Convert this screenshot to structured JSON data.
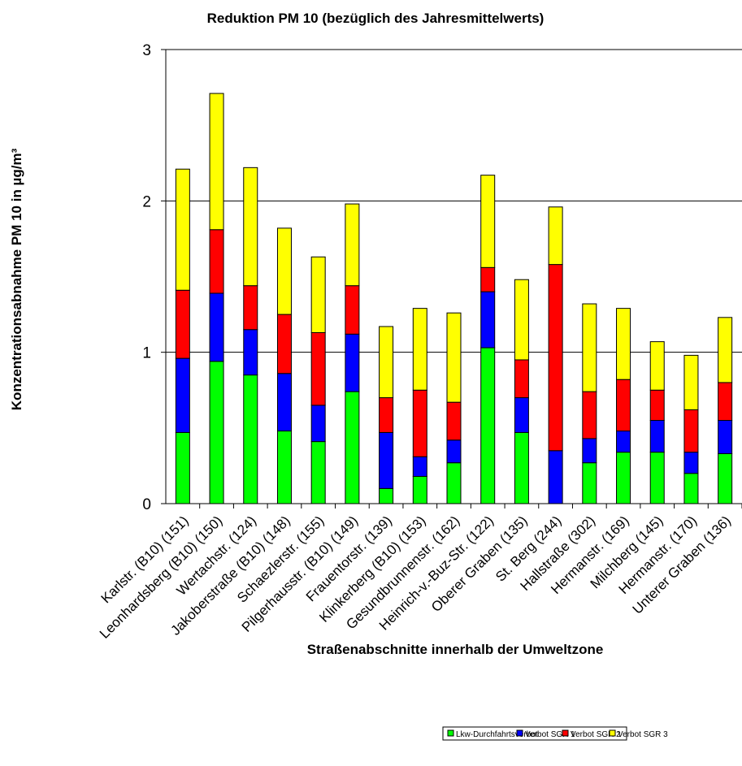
{
  "chart_data": {
    "type": "bar",
    "stacked": true,
    "title": "Reduktion PM 10 (bezüglich des Jahresmittelwerts)",
    "xlabel": "Straßenabschnitte innerhalb der Umweltzone",
    "ylabel": "Konzentrationsabnahme PM 10 in µg/m³",
    "ylim": [
      0,
      3
    ],
    "yticks": [
      "0",
      "1",
      "2",
      "3"
    ],
    "grid": true,
    "legend_position": "bottom-right",
    "categories": [
      "Karlstr. (B10) (151)",
      "Leonhardsberg (B10) (150)",
      "Wertachstr. (124)",
      "Jakoberstraße (B10) (148)",
      "Schaezlerstr. (155)",
      "Pilgerhausstr. (B10) (149)",
      "Frauentorstr. (139)",
      "Klinkerberg (B10) (153)",
      "Gesundbrunnenstr. (162)",
      "Heinrich-v.-Buz-Str. (122)",
      "Oberer Graben (135)",
      "St. Berg (244)",
      "Hallstraße (302)",
      "Hermanstr. (169)",
      "Milchberg (145)",
      "Hermanstr. (170)",
      "Unterer Graben (136)"
    ],
    "series": [
      {
        "name": "Lkw-Durchfahrtsverbot",
        "color": "#00ff00",
        "values": [
          0.47,
          0.94,
          0.85,
          0.48,
          0.41,
          0.74,
          0.1,
          0.18,
          0.27,
          1.03,
          0.47,
          0.0,
          0.27,
          0.34,
          0.34,
          0.2,
          0.33
        ]
      },
      {
        "name": "Verbot SGR 1",
        "color": "#0000ff",
        "values": [
          0.49,
          0.45,
          0.3,
          0.38,
          0.24,
          0.38,
          0.37,
          0.13,
          0.15,
          0.37,
          0.23,
          0.35,
          0.16,
          0.14,
          0.21,
          0.14,
          0.22
        ]
      },
      {
        "name": "Verbot SGR 2",
        "color": "#ff0000",
        "values": [
          0.45,
          0.42,
          0.29,
          0.39,
          0.48,
          0.32,
          0.23,
          0.44,
          0.25,
          0.16,
          0.25,
          1.23,
          0.31,
          0.34,
          0.2,
          0.28,
          0.25
        ]
      },
      {
        "name": "Verbot SGR 3",
        "color": "#ffff00",
        "values": [
          0.8,
          0.9,
          0.78,
          0.57,
          0.5,
          0.54,
          0.47,
          0.54,
          0.59,
          0.61,
          0.53,
          0.38,
          0.58,
          0.47,
          0.32,
          0.36,
          0.43
        ]
      }
    ]
  }
}
